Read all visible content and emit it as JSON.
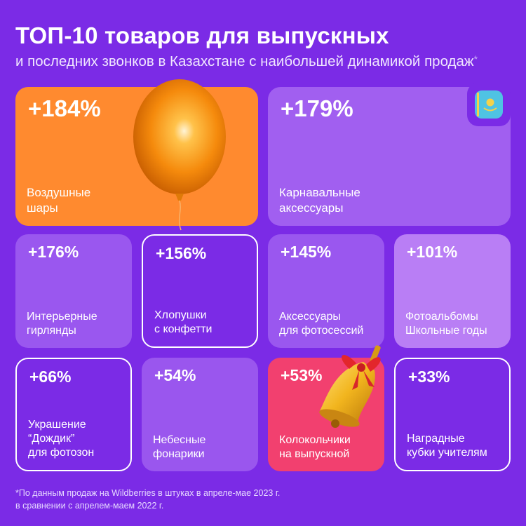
{
  "header": {
    "title": "ТОП-10 товаров для выпускных",
    "subtitle": "и последних звонков в Казахстане с наибольшей динамикой продаж",
    "subtitle_mark": "*"
  },
  "chart_data": {
    "type": "table",
    "title": "ТОП-10 товаров для выпускных",
    "subtitle": "и последних звонков в Казахстане с наибольшей динамикой продаж",
    "items": [
      {
        "pct": "+184%",
        "label": "Воздушные\nшары",
        "value": 184
      },
      {
        "pct": "+179%",
        "label": "Карнавальные\nаксессуары",
        "value": 179
      },
      {
        "pct": "+176%",
        "label": "Интерьерные\nгирлянды",
        "value": 176
      },
      {
        "pct": "+156%",
        "label": "Хлопушки\nс конфетти",
        "value": 156
      },
      {
        "pct": "+145%",
        "label": "Аксессуары\nдля фотосессий",
        "value": 145
      },
      {
        "pct": "+101%",
        "label": "Фотоальбомы\nШкольные годы",
        "value": 101
      },
      {
        "pct": "+66%",
        "label": "Украшение\n“Дождик”\nдля фотозон",
        "value": 66
      },
      {
        "pct": "+54%",
        "label": "Небесные\nфонарики",
        "value": 54
      },
      {
        "pct": "+53%",
        "label": "Колокольчики\nна выпускной",
        "value": 53
      },
      {
        "pct": "+33%",
        "label": "Наградные\nкубки учителям",
        "value": 33
      }
    ],
    "footnote": "*По данным продаж на Wildberries в штуках в апреле-мае 2023 г.\nв сравнении с апрелем-маем 2022 г."
  },
  "icons": {
    "balloon": "balloon-icon",
    "bell": "bell-icon",
    "flag": "kazakhstan-flag-icon"
  },
  "colors": {
    "background": "#7b2be6",
    "orange": "#ff8a2f",
    "pink": "#f2406f",
    "lilac": "#a15ff0"
  }
}
